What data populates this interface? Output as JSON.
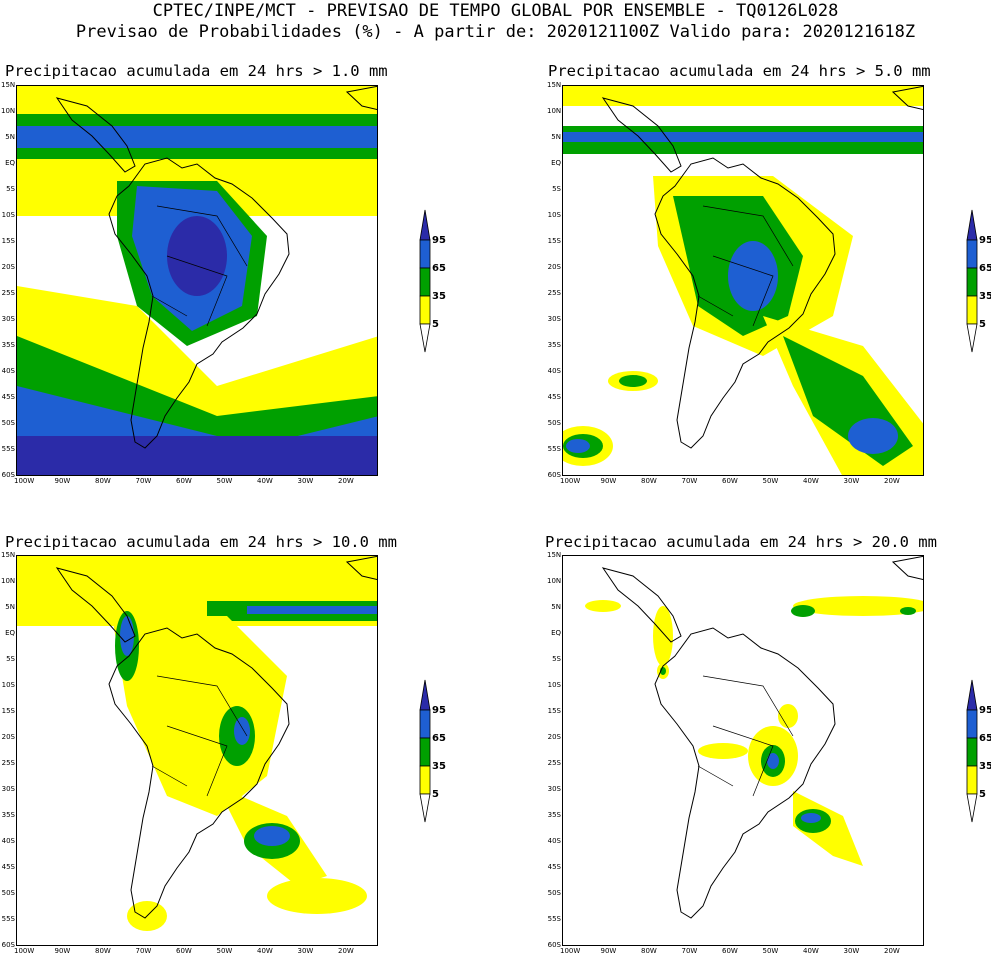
{
  "header": {
    "line1": "CPTEC/INPE/MCT - PREVISAO DE TEMPO GLOBAL POR ENSEMBLE - TQ0126L028",
    "line2": "Previsao de Probabilidades (%) -  A partir de: 2020121100Z  Valido para: 2020121618Z"
  },
  "panels": [
    {
      "title": "Precipitacao acumulada em 24 hrs > 1.0 mm"
    },
    {
      "title": "Precipitacao acumulada em 24 hrs > 5.0 mm"
    },
    {
      "title": "Precipitacao acumulada em 24 hrs > 10.0 mm"
    },
    {
      "title": "Precipitacao acumulada em 24 hrs > 20.0 mm"
    }
  ],
  "lat_labels": [
    "15N",
    "10N",
    "5N",
    "EQ",
    "5S",
    "10S",
    "15S",
    "20S",
    "25S",
    "30S",
    "35S",
    "40S",
    "45S",
    "50S",
    "55S",
    "60S"
  ],
  "lon_labels": [
    "100W",
    "90W",
    "80W",
    "70W",
    "60W",
    "50W",
    "40W",
    "30W",
    "20W"
  ],
  "colorbar": {
    "labels": [
      "95",
      "65",
      "35",
      "5"
    ],
    "colors": {
      "c5": "#ffff00",
      "c35": "#00a000",
      "c65": "#1e5fd2",
      "c95": "#2b2ba8"
    }
  }
}
